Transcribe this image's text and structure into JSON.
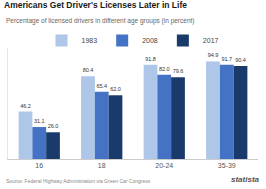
{
  "chart_data": {
    "type": "bar",
    "title": "Americans Get Driver's Licenses Later in Life",
    "subtitle": "Percentage of licensed drivers in different age groups (in percent)",
    "categories": [
      "16",
      "18",
      "20-24",
      "35-39"
    ],
    "series": [
      {
        "name": "1983",
        "color": "#aec6e8",
        "values": [
          46.2,
          80.4,
          91.8,
          94.9
        ],
        "value_labels": [
          "46.2",
          "80.4",
          "91.8",
          "94.9"
        ]
      },
      {
        "name": "2008",
        "color": "#4472c4",
        "values": [
          31.1,
          65.4,
          82.0,
          91.7
        ],
        "value_labels": [
          "31.1",
          "65.4",
          "82.0",
          "91.7"
        ]
      },
      {
        "name": "2017",
        "color": "#1a3a6b",
        "values": [
          26.0,
          62.0,
          79.6,
          90.4
        ],
        "value_labels": [
          "26.0",
          "62.0",
          "79.6",
          "90.4"
        ]
      }
    ],
    "ylim": [
      0,
      108
    ],
    "grid": false,
    "legend": "top",
    "data_labels": true,
    "tick_labels": "x",
    "annotations": [
      "Source: Federal Highway Administration via Green Car Congress",
      "statista"
    ]
  }
}
